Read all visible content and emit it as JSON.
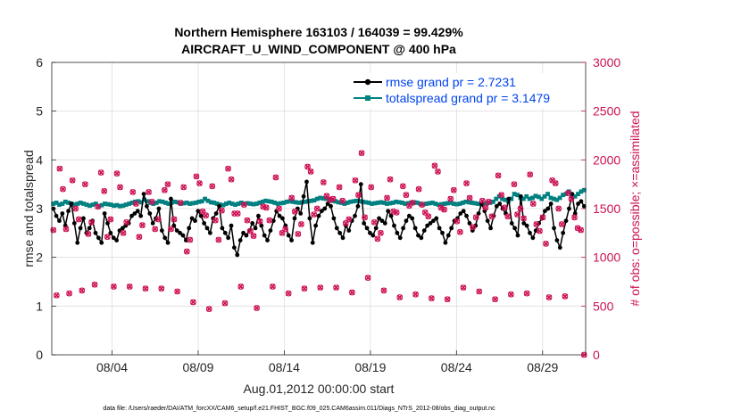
{
  "chart_data": {
    "type": "line",
    "title_line1": "Northern Hemisphere 163103 / 164039 = 99.429%",
    "title_line2": "AIRCRAFT_U_WIND_COMPONENT @ 400 hPa",
    "xlabel": "Aug.01,2012 00:00:00 start",
    "ylabel_left": "rmse and totalspread",
    "ylabel_right": "# of obs: o=possible; ×=assimilated",
    "footer": "data file: /Users/raeder/DAI/ATM_forcXX/CAM6_setup/f.e21.FHIST_BGC.f09_025.CAM6assim.011/Diags_NTrS_2012-08/obs_diag_output.nc",
    "xlim": [
      0.5,
      31.5
    ],
    "ylim_left": [
      0,
      6
    ],
    "ylim_right": [
      0,
      3000
    ],
    "xticks": [
      {
        "x": 4,
        "label": "08/04"
      },
      {
        "x": 9,
        "label": "08/09"
      },
      {
        "x": 14,
        "label": "08/14"
      },
      {
        "x": 19,
        "label": "08/19"
      },
      {
        "x": 24,
        "label": "08/24"
      },
      {
        "x": 29,
        "label": "08/29"
      }
    ],
    "yticks_left": [
      0,
      1,
      2,
      3,
      4,
      5,
      6
    ],
    "yticks_right": [
      0,
      500,
      1000,
      1500,
      2000,
      2500,
      3000
    ],
    "colors": {
      "rmse": "#000000",
      "spread": "#008080",
      "obs": "#cc1155",
      "grid": "#dddddd",
      "legend_text": "#0044ee"
    },
    "series": [
      {
        "name": "rmse grand pr = 2.7231",
        "axis": "left",
        "values": [
          3.0,
          2.85,
          2.75,
          2.9,
          2.65,
          2.95,
          3.1,
          2.7,
          2.3,
          2.6,
          2.8,
          2.5,
          2.6,
          2.75,
          2.5,
          2.4,
          2.3,
          2.9,
          2.7,
          2.5,
          2.4,
          2.35,
          2.55,
          2.6,
          2.65,
          2.7,
          2.85,
          2.9,
          2.95,
          2.85,
          3.3,
          3.05,
          2.9,
          2.7,
          2.8,
          3.0,
          2.55,
          2.4,
          2.3,
          3.2,
          2.65,
          2.55,
          2.5,
          2.45,
          2.35,
          2.6,
          2.8,
          2.75,
          2.95,
          2.85,
          2.7,
          2.6,
          2.5,
          2.8,
          2.9,
          3.05,
          2.6,
          2.5,
          2.4,
          2.65,
          2.2,
          2.05,
          2.35,
          2.5,
          2.45,
          2.55,
          2.7,
          2.6,
          2.85,
          2.65,
          2.45,
          2.35,
          2.55,
          2.75,
          2.95,
          2.85,
          2.8,
          2.65,
          2.45,
          2.35,
          2.8,
          3.0,
          2.9,
          3.25,
          3.55,
          2.8,
          2.3,
          2.65,
          2.85,
          2.95,
          3.0,
          3.1,
          3.05,
          2.8,
          2.6,
          2.5,
          2.4,
          2.65,
          2.55,
          2.75,
          2.85,
          3.05,
          3.5,
          2.7,
          2.6,
          2.5,
          2.45,
          2.6,
          2.8,
          2.75,
          2.7,
          2.95,
          2.85,
          2.65,
          2.5,
          2.4,
          2.6,
          2.75,
          2.85,
          2.8,
          2.6,
          2.45,
          2.4,
          2.55,
          2.65,
          2.7,
          2.75,
          2.8,
          2.6,
          2.5,
          2.3,
          2.45,
          2.6,
          2.75,
          2.8,
          2.9,
          2.95,
          2.85,
          2.7,
          2.55,
          2.65,
          2.9,
          3.1,
          2.95,
          2.75,
          2.6,
          2.85,
          3.05,
          3.1,
          3.0,
          2.9,
          3.2,
          2.7,
          2.6,
          2.45,
          3.25,
          2.7,
          2.65,
          2.5,
          2.4,
          2.55,
          2.7,
          2.8,
          2.95,
          3.0,
          3.1,
          2.6,
          2.35,
          2.2,
          2.5,
          2.75,
          3.0,
          3.3,
          2.9,
          3.1,
          3.15,
          3.05
        ]
      },
      {
        "name": "totalspread grand pr = 3.1479",
        "axis": "left",
        "values": [
          3.1,
          3.12,
          3.08,
          3.1,
          3.14,
          3.12,
          3.1,
          3.08,
          3.1,
          3.12,
          3.1,
          3.08,
          3.06,
          3.08,
          3.1,
          3.05,
          3.07,
          3.1,
          3.09,
          3.08,
          3.06,
          3.07,
          3.05,
          3.06,
          3.08,
          3.1,
          3.12,
          3.14,
          3.15,
          3.13,
          3.18,
          3.15,
          3.12,
          3.1,
          3.12,
          3.15,
          3.14,
          3.12,
          3.1,
          3.12,
          3.14,
          3.13,
          3.1,
          3.11,
          3.12,
          3.1,
          3.11,
          3.12,
          3.14,
          3.15,
          3.2,
          3.16,
          3.13,
          3.12,
          3.1,
          3.08,
          3.07,
          3.1,
          3.12,
          3.1,
          3.08,
          3.1,
          3.12,
          3.1,
          3.11,
          3.1,
          3.09,
          3.1,
          3.12,
          3.14,
          3.16,
          3.15,
          3.14,
          3.12,
          3.1,
          3.11,
          3.12,
          3.14,
          3.15,
          3.14,
          3.13,
          3.12,
          3.13,
          3.14,
          3.15,
          3.16,
          3.17,
          3.2,
          3.22,
          3.21,
          3.2,
          3.18,
          3.16,
          3.15,
          3.13,
          3.12,
          3.1,
          3.12,
          3.14,
          3.15,
          3.16,
          3.15,
          3.14,
          3.13,
          3.12,
          3.1,
          3.11,
          3.12,
          3.13,
          3.12,
          3.1,
          3.11,
          3.12,
          3.14,
          3.13,
          3.12,
          3.1,
          3.11,
          3.12,
          3.13,
          3.12,
          3.1,
          3.09,
          3.1,
          3.11,
          3.12,
          3.1,
          3.08,
          3.09,
          3.1,
          3.11,
          3.12,
          3.1,
          3.09,
          3.1,
          3.12,
          3.14,
          3.13,
          3.12,
          3.11,
          3.1,
          3.09,
          3.1,
          3.11,
          3.12,
          3.14,
          3.2,
          3.25,
          3.2,
          3.18,
          3.15,
          3.2,
          3.3,
          3.28,
          3.22,
          3.2,
          3.25,
          3.2,
          3.22,
          3.26,
          3.24,
          3.2,
          3.25,
          3.3,
          3.22,
          3.2,
          3.18,
          3.22,
          3.28,
          3.3,
          3.35,
          3.28,
          3.25,
          3.3,
          3.35,
          3.38
        ]
      }
    ],
    "obs_possible": [
      1280,
      610,
      1910,
      1700,
      1290,
      630,
      1790,
      1500,
      1390,
      660,
      1750,
      1240,
      1360,
      720,
      1520,
      1870,
      1680,
      1210,
      1390,
      700,
      1860,
      1720,
      1250,
      1360,
      700,
      1670,
      1550,
      1210,
      1330,
      680,
      1670,
      1570,
      1290,
      1390,
      680,
      1690,
      1750,
      1290,
      1390,
      650,
      1560,
      1720,
      1060,
      1180,
      540,
      1830,
      1760,
      1470,
      1430,
      470,
      1730,
      1380,
      1180,
      1480,
      530,
      1910,
      1800,
      1450,
      1450,
      700,
      1540,
      1380,
      1270,
      1220,
      480,
      1370,
      1520,
      1510,
      1380,
      700,
      1820,
      1500,
      1250,
      1290,
      630,
      1610,
      1470,
      1240,
      1340,
      680,
      1930,
      1880,
      1440,
      1500,
      690,
      1770,
      1630,
      1590,
      1600,
      690,
      1720,
      1580,
      1350,
      1390,
      640,
      1790,
      1640,
      2070,
      1410,
      790,
      1720,
      1360,
      1190,
      1250,
      660,
      1610,
      1800,
      1470,
      1460,
      590,
      1730,
      1640,
      1530,
      1560,
      620,
      1700,
      1540,
      1460,
      1420,
      580,
      1940,
      1880,
      1510,
      1490,
      570,
      1600,
      1690,
      1370,
      1260,
      690,
      1760,
      1610,
      1310,
      1410,
      650,
      1580,
      1510,
      1570,
      1420,
      570,
      1840,
      1640,
      1510,
      1420,
      620,
      1750,
      1440,
      1500,
      1400,
      630,
      1850,
      1550,
      1340,
      1270,
      1410,
      1140,
      590,
      1790,
      1760,
      1500,
      1340,
      600,
      1660,
      1600,
      1410,
      1300,
      1280,
      0
    ],
    "obs_assimilated": [
      1280,
      610,
      1910,
      1700,
      1290,
      630,
      1790,
      1500,
      1390,
      660,
      1750,
      1240,
      1360,
      720,
      1520,
      1870,
      1680,
      1210,
      1390,
      700,
      1860,
      1720,
      1250,
      1360,
      700,
      1670,
      1550,
      1210,
      1330,
      680,
      1670,
      1570,
      1290,
      1390,
      680,
      1690,
      1750,
      1290,
      1390,
      650,
      1560,
      1720,
      1060,
      1180,
      540,
      1830,
      1760,
      1470,
      1430,
      470,
      1730,
      1380,
      1180,
      1480,
      530,
      1910,
      1800,
      1450,
      1450,
      700,
      1540,
      1380,
      1270,
      1220,
      480,
      1370,
      1520,
      1510,
      1380,
      700,
      1820,
      1500,
      1250,
      1290,
      630,
      1610,
      1470,
      1240,
      1340,
      680,
      1930,
      1880,
      1440,
      1500,
      690,
      1770,
      1630,
      1590,
      1600,
      690,
      1720,
      1580,
      1350,
      1390,
      640,
      1790,
      1640,
      2070,
      1410,
      790,
      1720,
      1360,
      1190,
      1250,
      660,
      1610,
      1800,
      1470,
      1460,
      590,
      1730,
      1640,
      1530,
      1560,
      620,
      1700,
      1540,
      1460,
      1420,
      580,
      1940,
      1880,
      1510,
      1490,
      570,
      1600,
      1690,
      1370,
      1260,
      690,
      1760,
      1610,
      1310,
      1410,
      650,
      1580,
      1510,
      1570,
      1420,
      570,
      1840,
      1640,
      1510,
      1420,
      620,
      1750,
      1440,
      1500,
      1400,
      630,
      1850,
      1550,
      1340,
      1270,
      1410,
      1140,
      590,
      1790,
      1760,
      1500,
      1340,
      600,
      1660,
      1600,
      1410,
      1300,
      1280,
      0
    ]
  }
}
